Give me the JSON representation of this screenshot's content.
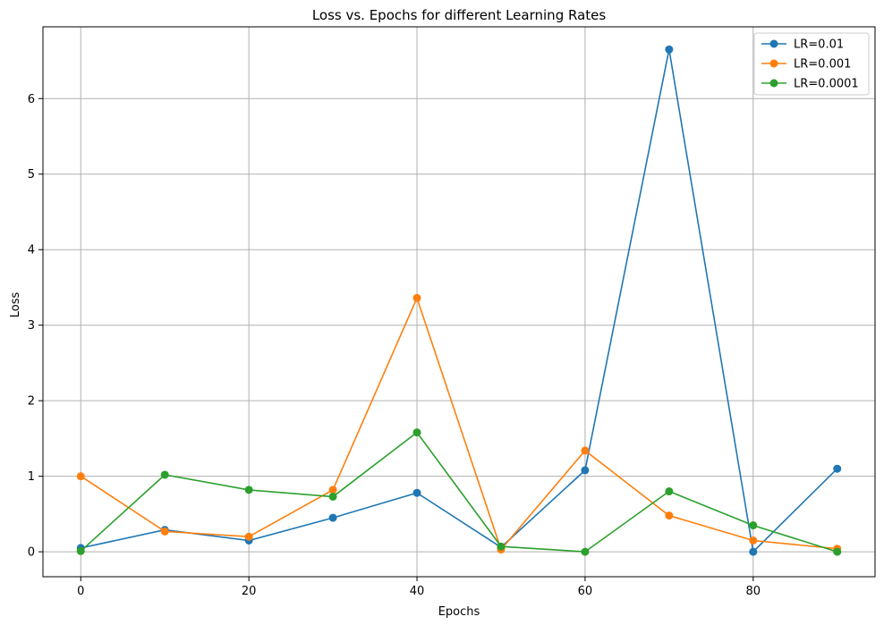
{
  "chart_data": {
    "type": "line",
    "title": "Loss vs. Epochs for different Learning Rates",
    "xlabel": "Epochs",
    "ylabel": "Loss",
    "xlim": [
      -4.5,
      94.5
    ],
    "ylim": [
      -0.33,
      6.95
    ],
    "xticks": [
      0,
      20,
      40,
      60,
      80
    ],
    "yticks": [
      0,
      1,
      2,
      3,
      4,
      5,
      6
    ],
    "grid": true,
    "legend_position": "top-right",
    "x": [
      0,
      10,
      20,
      30,
      40,
      50,
      60,
      70,
      80,
      90
    ],
    "series": [
      {
        "name": "LR=0.01",
        "color": "#1f77b4",
        "values": [
          0.05,
          0.29,
          0.15,
          0.45,
          0.78,
          0.06,
          1.08,
          6.65,
          0.0,
          1.1
        ]
      },
      {
        "name": "LR=0.001",
        "color": "#ff7f0e",
        "values": [
          1.0,
          0.27,
          0.2,
          0.82,
          3.36,
          0.03,
          1.34,
          0.48,
          0.15,
          0.04
        ]
      },
      {
        "name": "LR=0.0001",
        "color": "#2ca02c",
        "values": [
          0.01,
          1.02,
          0.82,
          0.73,
          1.58,
          0.07,
          0.0,
          0.8,
          0.35,
          0.0
        ]
      }
    ]
  }
}
